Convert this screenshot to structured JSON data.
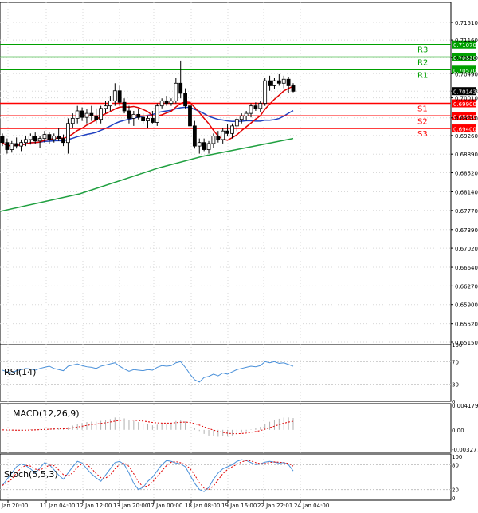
{
  "chart_data": [
    {
      "type": "candlestick",
      "panel": "price",
      "y_ticks": [
        "0.71510",
        "0.71160",
        "0.70810",
        "0.70490",
        "0.70143",
        "0.70010",
        "0.69610",
        "0.69260",
        "0.68890",
        "0.68520",
        "0.68140",
        "0.67770",
        "0.67390",
        "0.67020",
        "0.66640",
        "0.66270",
        "0.65900",
        "0.65520",
        "0.65150"
      ],
      "current_price": "0.70143",
      "levels": [
        {
          "name": "R3",
          "value": "0.71070",
          "role": "resistance"
        },
        {
          "name": "R2",
          "value": "0.70820",
          "role": "resistance"
        },
        {
          "name": "R1",
          "value": "0.70570",
          "role": "resistance"
        },
        {
          "name": "S1",
          "value": "0.69900",
          "role": "support"
        },
        {
          "name": "S2",
          "value": "0.69650",
          "role": "support"
        },
        {
          "name": "S3",
          "value": "0.69400",
          "role": "support"
        }
      ],
      "x_ticks": [
        "Jan 20:00",
        "11 Jan 04:00",
        "12 Jan 12:00",
        "13 Jan 20:00",
        "17 Jan 00:00",
        "18 Jan 08:00",
        "19 Jan 16:00",
        "22 Jan 22:01",
        "24 Jan 04:00"
      ],
      "candles_ohlc": [
        [
          0.6925,
          0.693,
          0.6905,
          0.6912
        ],
        [
          0.6912,
          0.692,
          0.689,
          0.6898
        ],
        [
          0.6898,
          0.6915,
          0.6892,
          0.691
        ],
        [
          0.691,
          0.6922,
          0.69,
          0.6905
        ],
        [
          0.6905,
          0.6918,
          0.6895,
          0.6912
        ],
        [
          0.6912,
          0.6925,
          0.6905,
          0.6918
        ],
        [
          0.6918,
          0.693,
          0.6908,
          0.6925
        ],
        [
          0.6925,
          0.6932,
          0.691,
          0.6915
        ],
        [
          0.6915,
          0.6925,
          0.6902,
          0.692
        ],
        [
          0.692,
          0.6935,
          0.6912,
          0.6928
        ],
        [
          0.6928,
          0.6932,
          0.691,
          0.6918
        ],
        [
          0.6918,
          0.693,
          0.6912,
          0.6925
        ],
        [
          0.6925,
          0.694,
          0.6915,
          0.692
        ],
        [
          0.692,
          0.6928,
          0.6905,
          0.6912
        ],
        [
          0.6912,
          0.696,
          0.689,
          0.695
        ],
        [
          0.695,
          0.697,
          0.694,
          0.696
        ],
        [
          0.696,
          0.6985,
          0.695,
          0.6975
        ],
        [
          0.6975,
          0.6982,
          0.6955,
          0.6962
        ],
        [
          0.6962,
          0.6978,
          0.695,
          0.697
        ],
        [
          0.697,
          0.6985,
          0.6955,
          0.6965
        ],
        [
          0.6965,
          0.698,
          0.695,
          0.6958
        ],
        [
          0.6958,
          0.6985,
          0.695,
          0.698
        ],
        [
          0.698,
          0.6995,
          0.697,
          0.6985
        ],
        [
          0.6985,
          0.7005,
          0.6975,
          0.6995
        ],
        [
          0.6995,
          0.703,
          0.6985,
          0.7015
        ],
        [
          0.7015,
          0.7025,
          0.6985,
          0.6992
        ],
        [
          0.6992,
          0.7,
          0.697,
          0.6975
        ],
        [
          0.6975,
          0.6985,
          0.695,
          0.696
        ],
        [
          0.696,
          0.6975,
          0.6945,
          0.6968
        ],
        [
          0.6968,
          0.698,
          0.6958,
          0.6962
        ],
        [
          0.6962,
          0.697,
          0.695,
          0.6955
        ],
        [
          0.6955,
          0.6965,
          0.694,
          0.696
        ],
        [
          0.696,
          0.6975,
          0.695,
          0.6952
        ],
        [
          0.6952,
          0.699,
          0.6945,
          0.6985
        ],
        [
          0.6985,
          0.7,
          0.698,
          0.6995
        ],
        [
          0.6995,
          0.7005,
          0.6985,
          0.699
        ],
        [
          0.699,
          0.7,
          0.6985,
          0.6995
        ],
        [
          0.6995,
          0.704,
          0.699,
          0.703
        ],
        [
          0.703,
          0.7075,
          0.7,
          0.701
        ],
        [
          0.701,
          0.702,
          0.698,
          0.6985
        ],
        [
          0.6985,
          0.6995,
          0.694,
          0.6945
        ],
        [
          0.6945,
          0.6955,
          0.69,
          0.6905
        ],
        [
          0.6905,
          0.692,
          0.689,
          0.6912
        ],
        [
          0.6912,
          0.692,
          0.6895,
          0.6898
        ],
        [
          0.6898,
          0.6915,
          0.689,
          0.691
        ],
        [
          0.691,
          0.693,
          0.6902,
          0.6925
        ],
        [
          0.6925,
          0.6935,
          0.6912,
          0.6918
        ],
        [
          0.6918,
          0.694,
          0.691,
          0.6935
        ],
        [
          0.6935,
          0.6948,
          0.6925,
          0.693
        ],
        [
          0.693,
          0.695,
          0.692,
          0.6945
        ],
        [
          0.6945,
          0.696,
          0.6935,
          0.6958
        ],
        [
          0.6958,
          0.697,
          0.695,
          0.6965
        ],
        [
          0.6965,
          0.6975,
          0.6955,
          0.697
        ],
        [
          0.697,
          0.699,
          0.6962,
          0.6985
        ],
        [
          0.6985,
          0.6992,
          0.6975,
          0.698
        ],
        [
          0.698,
          0.6995,
          0.6972,
          0.699
        ],
        [
          0.699,
          0.704,
          0.6985,
          0.7035
        ],
        [
          0.7035,
          0.7045,
          0.7015,
          0.7025
        ],
        [
          0.7025,
          0.704,
          0.7018,
          0.7035
        ],
        [
          0.7035,
          0.7048,
          0.7025,
          0.703
        ],
        [
          0.703,
          0.7045,
          0.702,
          0.7038
        ],
        [
          0.7038,
          0.7042,
          0.701,
          0.7025
        ],
        [
          0.7025,
          0.703,
          0.7012,
          0.7014
        ]
      ]
    },
    {
      "type": "line",
      "panel": "indicator",
      "label": "RSI(14)",
      "y_ticks": [
        "100",
        "70",
        "30",
        "0"
      ],
      "values": [
        55,
        52,
        50,
        54,
        56,
        58,
        57,
        55,
        58,
        60,
        62,
        58,
        56,
        54,
        62,
        64,
        66,
        63,
        61,
        60,
        58,
        62,
        64,
        66,
        68,
        62,
        57,
        53,
        56,
        55,
        54,
        56,
        55,
        60,
        63,
        62,
        63,
        68,
        70,
        60,
        48,
        38,
        34,
        42,
        44,
        48,
        45,
        50,
        48,
        52,
        56,
        58,
        60,
        62,
        61,
        63,
        70,
        68,
        70,
        67,
        68,
        65,
        62
      ]
    },
    {
      "type": "bar",
      "panel": "indicator",
      "label": "MACD(12,26,9)",
      "y_ticks": [
        "0.004179",
        "0.00",
        "-0.003277"
      ]
    },
    {
      "type": "line",
      "panel": "indicator",
      "label": "Stoch(5,5,3)",
      "y_ticks": [
        "100",
        "80",
        "20",
        "0"
      ],
      "values": [
        30,
        45,
        60,
        75,
        82,
        78,
        70,
        60,
        72,
        85,
        80,
        68,
        55,
        45,
        60,
        75,
        88,
        84,
        70,
        58,
        48,
        40,
        55,
        70,
        85,
        88,
        80,
        60,
        35,
        20,
        25,
        40,
        50,
        65,
        80,
        90,
        88,
        84,
        82,
        75,
        55,
        35,
        20,
        15,
        25,
        45,
        60,
        70,
        75,
        80,
        88,
        92,
        90,
        85,
        80,
        82,
        86,
        88,
        86,
        84,
        85,
        80,
        65
      ]
    }
  ],
  "colors": {
    "resistance": "#00a000",
    "support": "#ff0000",
    "ma_fast": "#e00000",
    "ma_mid": "#2040c0",
    "ma_slow": "#20a040",
    "rsi": "#4a90d9",
    "macd_signal": "#e00000",
    "stoch_signal": "#e00000",
    "stoch_main": "#4a90d9"
  }
}
